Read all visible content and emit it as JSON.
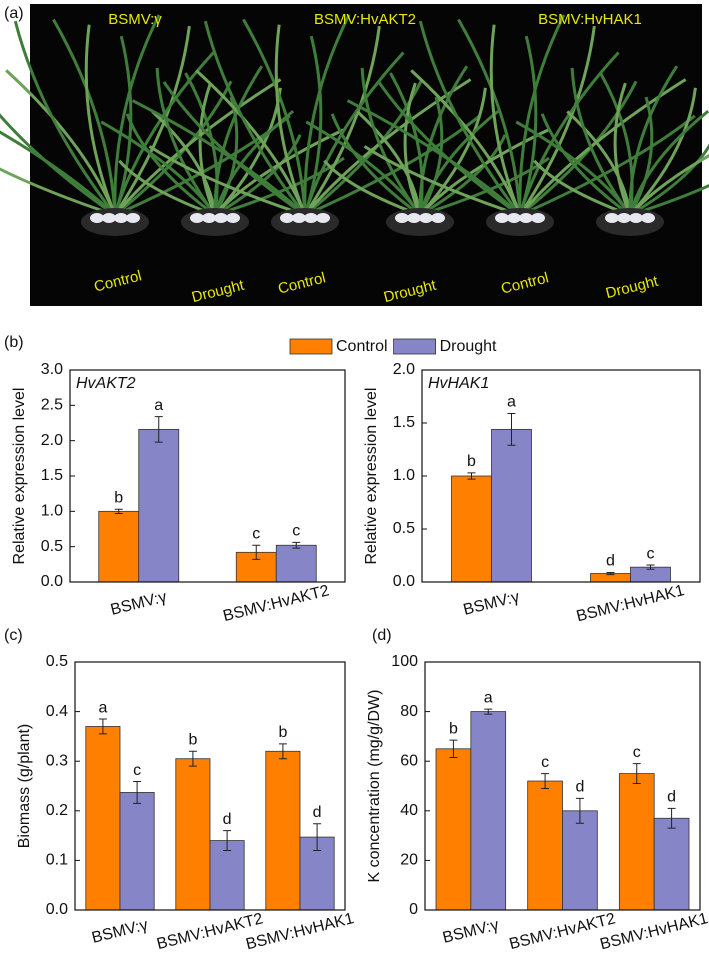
{
  "photo": {
    "panel": "(a)",
    "labels": [
      "BSMV:γ",
      "BSMV:HvAKT2",
      "BSMV:HvHAK1"
    ],
    "conditions": [
      "Control",
      "Drought",
      "Control",
      "Drought",
      "Control",
      "Drought"
    ]
  },
  "chart_data": [
    {
      "type": "bar",
      "panel": "(b)",
      "title": "HvAKT2",
      "ylabel": "Relative expression level",
      "categories": [
        "BSMV:γ",
        "BSMV:HvAKT2"
      ],
      "series": [
        {
          "name": "Control",
          "color": "#ff7f00",
          "values": [
            1.0,
            0.42
          ],
          "errors": [
            0.03,
            0.1
          ],
          "labels": [
            "b",
            "c"
          ]
        },
        {
          "name": "Drought",
          "color": "#8585c8",
          "values": [
            2.16,
            0.52
          ],
          "errors": [
            0.18,
            0.04
          ],
          "labels": [
            "a",
            "c"
          ]
        }
      ],
      "ylim": [
        0,
        3
      ],
      "yticks": [
        {
          "value": 0,
          "label": "0.0"
        },
        0.5,
        {
          "value": 1,
          "label": "1.0"
        },
        1.5,
        {
          "value": 2,
          "label": "2.0"
        },
        2.5,
        {
          "value": 3,
          "label": "3.0"
        }
      ]
    },
    {
      "type": "bar",
      "title": "HvHAK1",
      "ylabel": "Relative expression level",
      "categories": [
        "BSMV:γ",
        "BSMV:HvHAK1"
      ],
      "series": [
        {
          "color": "#ff7f00",
          "values": [
            1.0,
            0.08
          ],
          "errors": [
            0.03,
            0.01
          ],
          "labels": [
            "b",
            "d"
          ]
        },
        {
          "color": "#8585c8",
          "values": [
            1.44,
            0.14
          ],
          "errors": [
            0.15,
            0.02
          ],
          "labels": [
            "a",
            "c"
          ]
        }
      ],
      "ylim": [
        0,
        2
      ],
      "yticks": [
        {
          "value": 0,
          "label": "0.0"
        },
        0.5,
        {
          "value": 1,
          "label": "1.0"
        },
        1.5,
        {
          "value": 2,
          "label": "2.0"
        }
      ]
    },
    {
      "type": "bar",
      "panel": "(c)",
      "ylabel": "Biomass (g/plant)",
      "categories": [
        "BSMV:γ",
        "BSMV:HvAKT2",
        "BSMV:HvHAK1"
      ],
      "series": [
        {
          "color": "#ff7f00",
          "values": [
            0.37,
            0.305,
            0.32
          ],
          "errors": [
            0.015,
            0.015,
            0.015
          ],
          "labels": [
            "a",
            "b",
            "b"
          ]
        },
        {
          "color": "#8585c8",
          "values": [
            0.237,
            0.14,
            0.147
          ],
          "errors": [
            0.022,
            0.02,
            0.027
          ],
          "labels": [
            "c",
            "d",
            "d"
          ]
        }
      ],
      "ylim": [
        0,
        0.5
      ],
      "yticks": [
        {
          "value": 0,
          "label": "0.0"
        },
        0.1,
        0.2,
        0.3,
        0.4,
        0.5
      ]
    },
    {
      "type": "bar",
      "panel": "(d)",
      "ylabel": "K concentration (mg/g/DW)",
      "categories": [
        "BSMV:γ",
        "BSMV:HvAKT2",
        "BSMV:HvHAK1"
      ],
      "series": [
        {
          "color": "#ff7f00",
          "values": [
            65,
            52,
            55
          ],
          "errors": [
            3.5,
            3,
            4
          ],
          "labels": [
            "b",
            "c",
            "c"
          ]
        },
        {
          "color": "#8585c8",
          "values": [
            80,
            40,
            37
          ],
          "errors": [
            1,
            5,
            4
          ],
          "labels": [
            "a",
            "d",
            "d"
          ]
        }
      ],
      "ylim": [
        0,
        100
      ],
      "yticks": [
        0,
        20,
        40,
        60,
        80,
        100
      ]
    }
  ]
}
